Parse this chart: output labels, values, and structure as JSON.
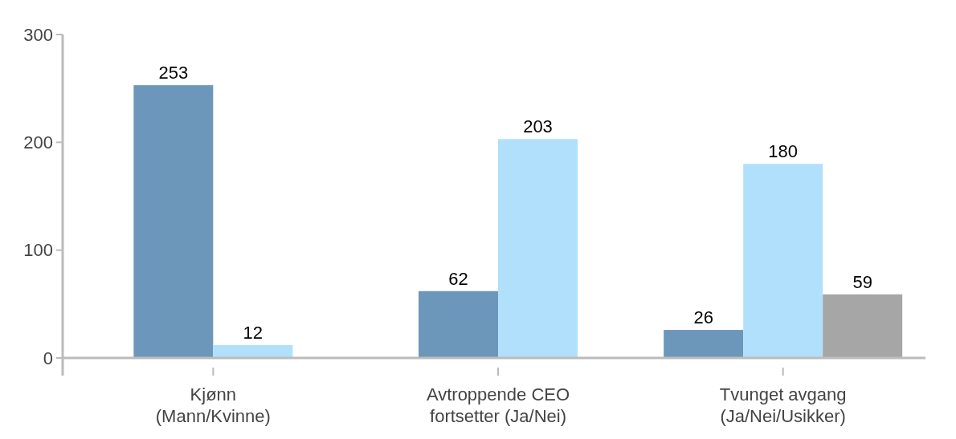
{
  "chart_data": {
    "type": "bar",
    "categories": [
      "Kjønn\n(Mann/Kvinne)",
      "Avtroppende CEO\nfortsetter (Ja/Nei)",
      "Tvunget avgang\n(Ja/Nei/Usikker)"
    ],
    "series": [
      {
        "color": "#6d97ba",
        "values": [
          253,
          62,
          26
        ]
      },
      {
        "color": "#b0e0fc",
        "values": [
          12,
          203,
          180
        ]
      },
      {
        "color": "#a6a6a6",
        "values": [
          null,
          null,
          59
        ]
      }
    ],
    "ylim": [
      0,
      300
    ],
    "yticks": [
      0,
      100,
      200,
      300
    ],
    "data_labels": true,
    "grid": false
  }
}
